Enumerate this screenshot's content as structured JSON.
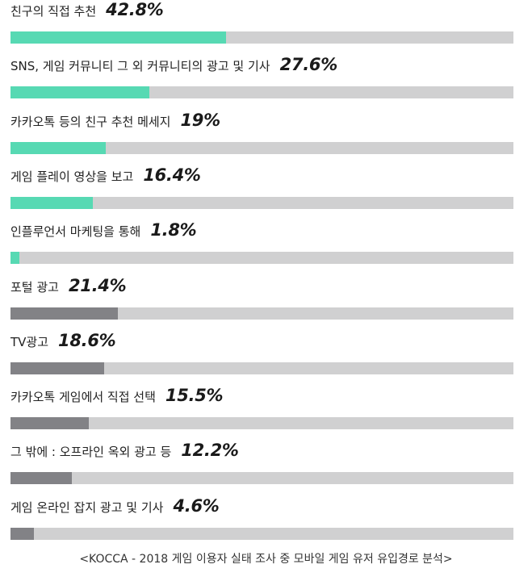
{
  "chart_data": {
    "type": "bar",
    "orientation": "horizontal",
    "xlim": [
      0,
      100
    ],
    "colors": {
      "online": "#57d9b3",
      "offline": "#828286",
      "track": "#d0d0d1"
    },
    "bars": [
      {
        "label": "친구의 직접 추천",
        "value": 42.8,
        "value_text": "42.8%",
        "group": "online"
      },
      {
        "label": "SNS, 게임 커뮤니티 그 외 커뮤니티의 광고 및 기사",
        "value": 27.6,
        "value_text": "27.6%",
        "group": "online"
      },
      {
        "label": "카카오톡 등의 친구 추천 메세지",
        "value": 19,
        "value_text": "19%",
        "group": "online"
      },
      {
        "label": "게임 플레이 영상을 보고",
        "value": 16.4,
        "value_text": "16.4%",
        "group": "online"
      },
      {
        "label": "인플루언서 마케팅을 통해",
        "value": 1.8,
        "value_text": "1.8%",
        "group": "online"
      },
      {
        "label": "포털 광고",
        "value": 21.4,
        "value_text": "21.4%",
        "group": "offline"
      },
      {
        "label": "TV광고",
        "value": 18.6,
        "value_text": "18.6%",
        "group": "offline"
      },
      {
        "label": "카카오톡 게임에서 직접 선택",
        "value": 15.5,
        "value_text": "15.5%",
        "group": "offline"
      },
      {
        "label": "그 밖에 : 오프라인 옥외 광고 등",
        "value": 12.2,
        "value_text": "12.2%",
        "group": "offline"
      },
      {
        "label": "게임 온라인 잡지 광고 및 기사",
        "value": 4.6,
        "value_text": "4.6%",
        "group": "offline"
      }
    ]
  },
  "source": "<KOCCA - 2018 게임 이용자 실태 조사 중 모바일 게임 유저 유입경로 분석>"
}
